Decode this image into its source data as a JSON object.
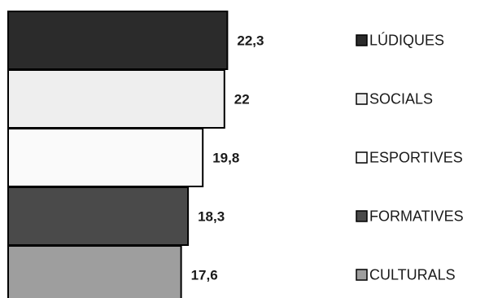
{
  "chart_data": {
    "type": "bar",
    "orientation": "horizontal",
    "title": "",
    "xlabel": "",
    "ylabel": "",
    "xlim": [
      0,
      22.3
    ],
    "grid": false,
    "legend_position": "right",
    "categories": [
      "LÚDIQUES",
      "SOCIALS",
      "ESPORTIVES",
      "FORMATIVES",
      "CULTURALS"
    ],
    "values": [
      22.3,
      22,
      19.8,
      18.3,
      17.6
    ],
    "value_labels": [
      "22,3",
      "22",
      "19,8",
      "18,3",
      "17,6"
    ],
    "colors": [
      "#2b2b2b",
      "#eeeeee",
      "#fafafa",
      "#4a4a4a",
      "#9e9e9e"
    ]
  }
}
